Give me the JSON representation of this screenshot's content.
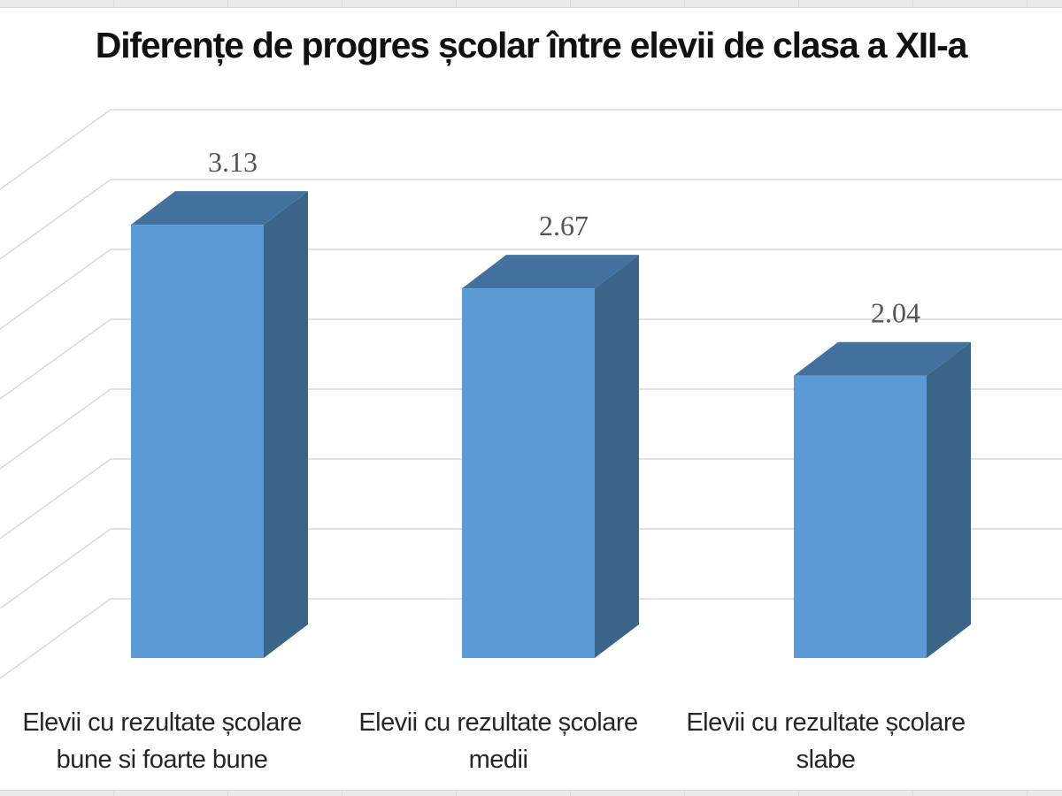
{
  "chart_data": {
    "type": "bar",
    "projection": "3d",
    "title": "Diferențe de progres școlar între elevii de clasa a XII-a",
    "categories": [
      "Elevii cu rezultate școlare bune si foarte bune",
      "Elevii cu rezultate școlare medii",
      "Elevii cu rezultate școlare slabe"
    ],
    "category_lines": [
      [
        "Elevii cu rezultate școlare",
        "bune si foarte bune"
      ],
      [
        "Elevii cu rezultate școlare",
        "medii"
      ],
      [
        "Elevii cu rezultate școlare",
        "slabe"
      ]
    ],
    "values": [
      3.13,
      2.67,
      2.04
    ],
    "data_labels": [
      "3.13",
      "2.67",
      "2.04"
    ],
    "xlabel": "",
    "ylabel": "",
    "ylim": [
      0,
      3.5
    ],
    "y_major_unit": 0.5,
    "gridlines": true,
    "legend": "none",
    "colors": {
      "bar_front": "#5b9bd5",
      "bar_top": "#41719c",
      "bar_side": "#3a6588",
      "gridline": "#d9d9d9",
      "data_label": "#545454",
      "category_label": "#262626",
      "title": "#111111",
      "strip": "#e9e9e9"
    }
  }
}
